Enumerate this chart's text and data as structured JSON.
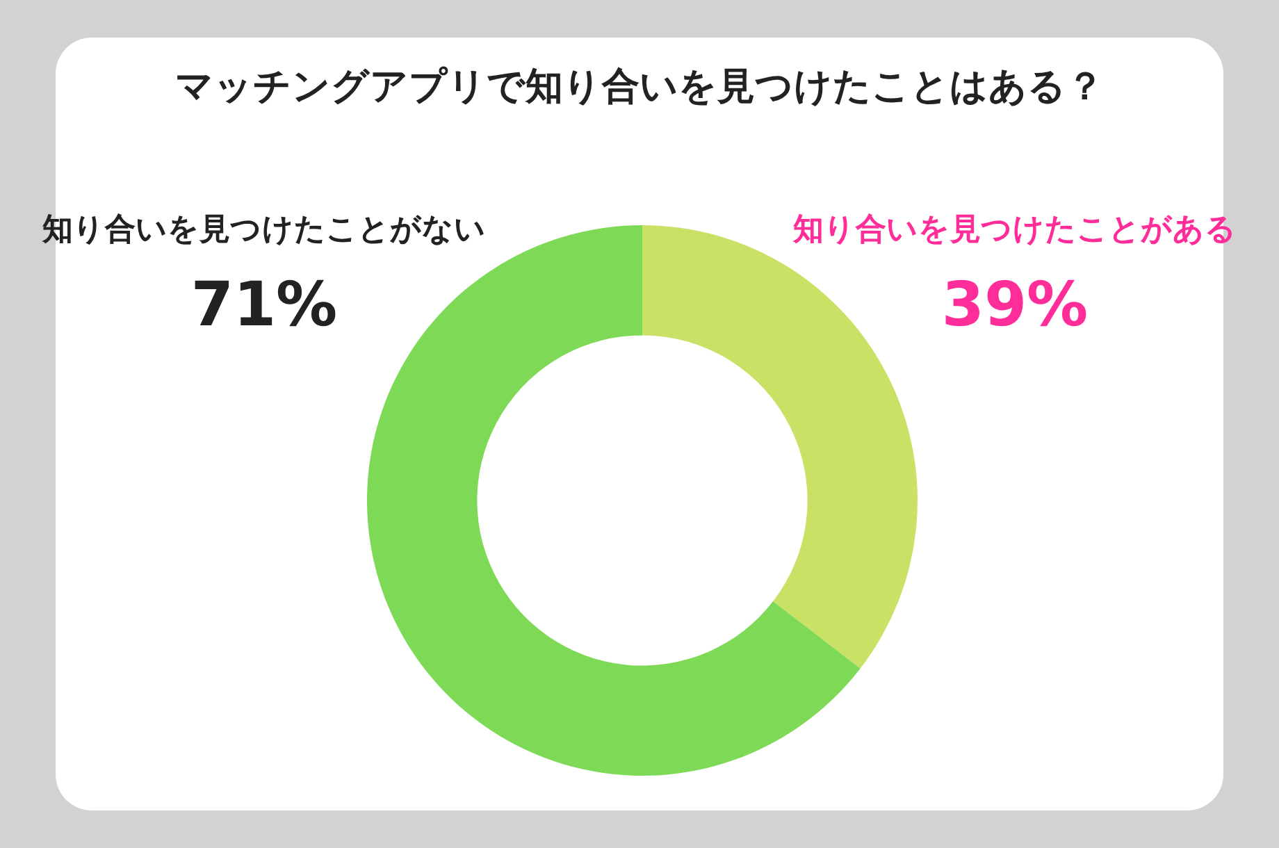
{
  "chart_data": {
    "type": "donut",
    "title": "マッチングアプリで知り合いを見つけたことはある？",
    "categories": [
      "知り合いを見つけたことがある",
      "知り合いを見つけたことがない"
    ],
    "values": [
      39,
      71
    ],
    "colors": [
      "#c9e265",
      "#7ed957"
    ],
    "value_labels": [
      "39%",
      "71%"
    ],
    "legend": false
  }
}
